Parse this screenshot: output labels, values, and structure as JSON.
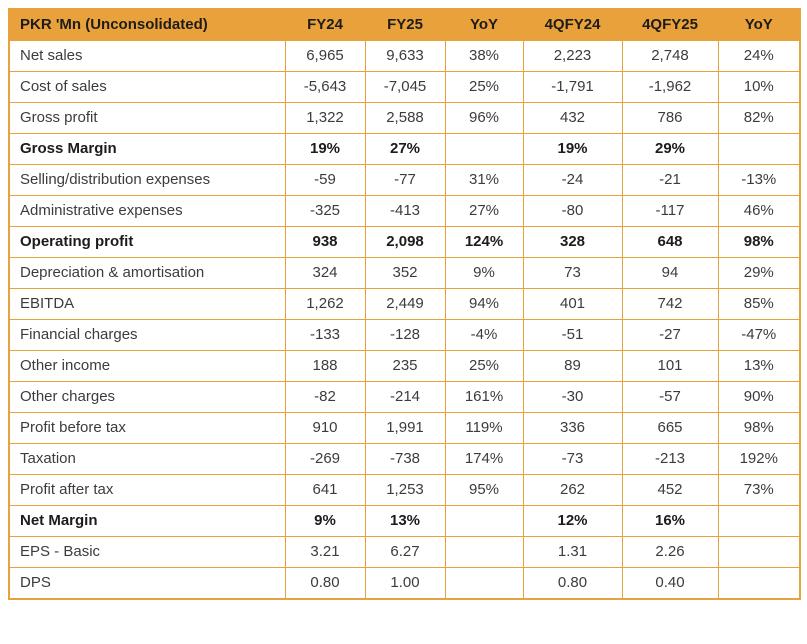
{
  "colors": {
    "accent": "#E9A23B",
    "header_text": "#1E1C1A",
    "body_text": "#3C3C3C"
  },
  "table": {
    "columns": [
      "PKR 'Mn (Unconsolidated)",
      "FY24",
      "FY25",
      "YoY",
      "4QFY24",
      "4QFY25",
      "YoY"
    ],
    "rows": [
      {
        "label": "Net sales",
        "bold": false,
        "values": [
          "6,965",
          "9,633",
          "38%",
          "2,223",
          "2,748",
          "24%"
        ]
      },
      {
        "label": "Cost of sales",
        "bold": false,
        "values": [
          "-5,643",
          "-7,045",
          "25%",
          "-1,791",
          "-1,962",
          "10%"
        ]
      },
      {
        "label": "Gross profit",
        "bold": false,
        "values": [
          "1,322",
          "2,588",
          "96%",
          "432",
          "786",
          "82%"
        ]
      },
      {
        "label": "Gross Margin",
        "bold": true,
        "values": [
          "19%",
          "27%",
          "",
          "19%",
          "29%",
          ""
        ]
      },
      {
        "label": "Selling/distribution expenses",
        "bold": false,
        "values": [
          "-59",
          "-77",
          "31%",
          "-24",
          "-21",
          "-13%"
        ]
      },
      {
        "label": "Administrative expenses",
        "bold": false,
        "values": [
          "-325",
          "-413",
          "27%",
          "-80",
          "-117",
          "46%"
        ]
      },
      {
        "label": "Operating profit",
        "bold": true,
        "values": [
          "938",
          "2,098",
          "124%",
          "328",
          "648",
          "98%"
        ]
      },
      {
        "label": "Depreciation & amortisation",
        "bold": false,
        "values": [
          "324",
          "352",
          "9%",
          "73",
          "94",
          "29%"
        ]
      },
      {
        "label": "EBITDA",
        "bold": false,
        "values": [
          "1,262",
          "2,449",
          "94%",
          "401",
          "742",
          "85%"
        ]
      },
      {
        "label": "Financial charges",
        "bold": false,
        "values": [
          "-133",
          "-128",
          "-4%",
          "-51",
          "-27",
          "-47%"
        ]
      },
      {
        "label": "Other income",
        "bold": false,
        "values": [
          "188",
          "235",
          "25%",
          "89",
          "101",
          "13%"
        ]
      },
      {
        "label": "Other charges",
        "bold": false,
        "values": [
          "-82",
          "-214",
          "161%",
          "-30",
          "-57",
          "90%"
        ]
      },
      {
        "label": "Profit before tax",
        "bold": false,
        "values": [
          "910",
          "1,991",
          "119%",
          "336",
          "665",
          "98%"
        ]
      },
      {
        "label": "Taxation",
        "bold": false,
        "values": [
          "-269",
          "-738",
          "174%",
          "-73",
          "-213",
          "192%"
        ]
      },
      {
        "label": "Profit after tax",
        "bold": false,
        "values": [
          "641",
          "1,253",
          "95%",
          "262",
          "452",
          "73%"
        ]
      },
      {
        "label": "Net Margin",
        "bold": true,
        "values": [
          "9%",
          "13%",
          "",
          "12%",
          "16%",
          ""
        ]
      },
      {
        "label": "EPS - Basic",
        "bold": false,
        "values": [
          "3.21",
          "6.27",
          "",
          "1.31",
          "2.26",
          ""
        ]
      },
      {
        "label": "DPS",
        "bold": false,
        "values": [
          "0.80",
          "1.00",
          "",
          "0.80",
          "0.40",
          ""
        ]
      }
    ]
  }
}
